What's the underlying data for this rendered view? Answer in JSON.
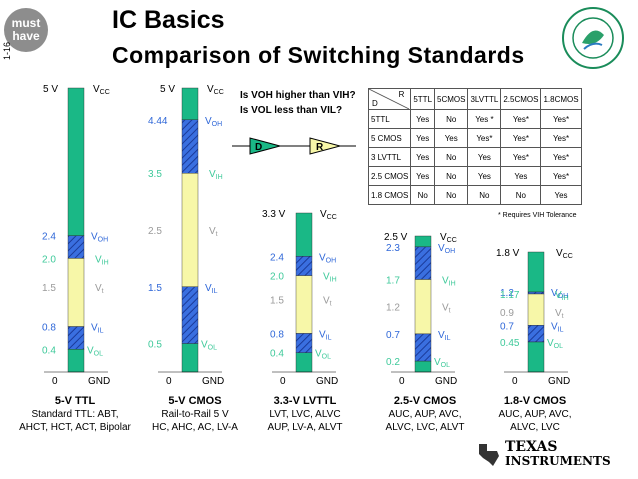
{
  "badge": {
    "line1": "must",
    "line2": "have"
  },
  "page_number": "1-16",
  "title": "IC Basics",
  "subtitle": "Comparison of Switching Standards",
  "question": {
    "line1": "Is VOH higher than VIH?",
    "line2": "Is VOL less than VIL?"
  },
  "driver_label": "D",
  "receiver_label": "R",
  "table": {
    "corner_r": "R",
    "corner_d": "D",
    "headers": [
      "5TTL",
      "5CMOS",
      "3LVTTL",
      "2.5CMOS",
      "1.8CMOS"
    ],
    "rows": [
      {
        "label": "5TTL",
        "cells": [
          "Yes",
          "No",
          "Yes *",
          "Yes*",
          "Yes*"
        ]
      },
      {
        "label": "5 CMOS",
        "cells": [
          "Yes",
          "Yes",
          "Yes*",
          "Yes*",
          "Yes*"
        ]
      },
      {
        "label": "3 LVTTL",
        "cells": [
          "Yes",
          "No",
          "Yes",
          "Yes*",
          "Yes*"
        ]
      },
      {
        "label": "2.5 CMOS",
        "cells": [
          "Yes",
          "No",
          "Yes",
          "Yes",
          "Yes*"
        ]
      },
      {
        "label": "1.8 CMOS",
        "cells": [
          "No",
          "No",
          "No",
          "No",
          "Yes"
        ]
      }
    ],
    "footnote": "* Requires VIH Tolerance"
  },
  "colors": {
    "green": "#1ab886",
    "yellow": "#f7f7a8",
    "blue": "#3a6fe0",
    "label_blue": "#2f67d8",
    "label_green": "#3ec99a",
    "label_gray": "#9a9a9a"
  },
  "standards": [
    {
      "name": "5-V TTL",
      "vcc": "5 V",
      "desc1": "Standard TTL: ABT,",
      "desc2": "AHCT, HCT, ACT, Bipolar",
      "levels": {
        "VOH": 2.4,
        "VIH": 2.0,
        "Vt": 1.5,
        "VIL": 0.8,
        "VOL": 0.4
      },
      "labels": {
        "VOH": "2.4",
        "VIH": "2.0",
        "Vt": "1.5",
        "VIL": "0.8",
        "VOL": "0.4"
      }
    },
    {
      "name": "5-V CMOS",
      "vcc": "5 V",
      "desc1": "Rail-to-Rail 5 V",
      "desc2": "HC, AHC, AC, LV-A",
      "levels": {
        "VOH": 4.44,
        "VIH": 3.5,
        "Vt": 2.5,
        "VIL": 1.5,
        "VOL": 0.5
      },
      "labels": {
        "VOH": "4.44",
        "VIH": "3.5",
        "Vt": "2.5",
        "VIL": "1.5",
        "VOL": "0.5"
      }
    },
    {
      "name": "3.3-V LVTTL",
      "vcc": "3.3 V",
      "desc1": "LVT, LVC, ALVC",
      "desc2": "AUP, LV-A, ALVT",
      "levels": {
        "VOH": 2.4,
        "VIH": 2.0,
        "Vt": 1.5,
        "VIL": 0.8,
        "VOL": 0.4
      },
      "labels": {
        "VOH": "2.4",
        "VIH": "2.0",
        "Vt": "1.5",
        "VIL": "0.8",
        "VOL": "0.4"
      }
    },
    {
      "name": "2.5-V CMOS",
      "vcc": "2.5 V",
      "desc1": "AUC, AUP, AVC,",
      "desc2": "ALVC, LVC, ALVT",
      "levels": {
        "VOH": 2.3,
        "VIH": 1.7,
        "Vt": 1.2,
        "VIL": 0.7,
        "VOL": 0.2
      },
      "labels": {
        "VOH": "2.3",
        "VIH": "1.7",
        "Vt": "1.2",
        "VIL": "0.7",
        "VOL": "0.2"
      }
    },
    {
      "name": "1.8-V CMOS",
      "vcc": "1.8 V",
      "desc1": "AUC, AUP, AVC,",
      "desc2": "ALVC, LVC",
      "levels": {
        "VOH": 1.2,
        "VIH": 1.17,
        "Vt": 0.9,
        "VIL": 0.7,
        "VOL": 0.45
      },
      "labels": {
        "VOH": "1.2",
        "VIH": "1.17",
        "Vt": "0.9",
        "VIL": "0.7",
        "VOL": "0.45"
      }
    }
  ],
  "axis": {
    "zero": "0",
    "gnd": "GND",
    "vcc": "VCC",
    "voh": "VOH",
    "vih": "VIH",
    "vt": "Vt",
    "vil": "VIL",
    "vol": "VOL"
  },
  "logo": {
    "line1": "TEXAS",
    "line2": "INSTRUMENTS"
  }
}
